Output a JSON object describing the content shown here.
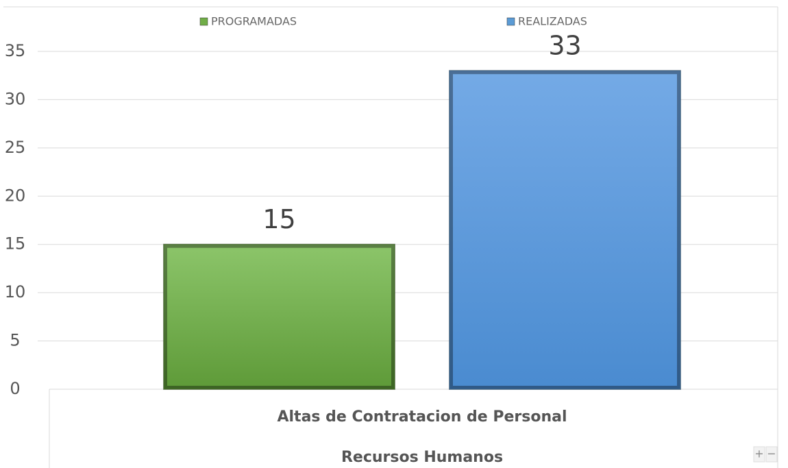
{
  "chart_data": {
    "type": "bar",
    "categories": [
      "Altas de Contratacion de Personal"
    ],
    "category_groups": [
      "Recursos Humanos"
    ],
    "series": [
      {
        "name": "PROGRAMADAS",
        "color": "#70ad47",
        "values": [
          15
        ]
      },
      {
        "name": "REALIZADAS",
        "color": "#5b9bd5",
        "values": [
          33
        ]
      }
    ],
    "ylim": [
      0,
      35
    ],
    "yticks": [
      0,
      5,
      10,
      15,
      20,
      25,
      30,
      35
    ],
    "grid": true,
    "legend": "top",
    "controls": [
      "+",
      "−"
    ]
  }
}
